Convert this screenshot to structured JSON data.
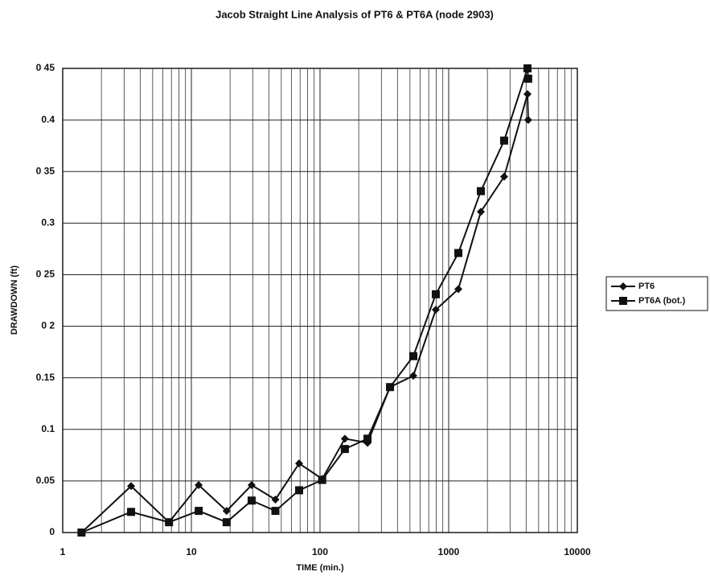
{
  "chart_data": {
    "type": "line",
    "title": "Jacob Straight Line Analysis of PT6 & PT6A (node 2903)",
    "xlabel": "TIME (min.)",
    "ylabel": "DRAWDOWN (ft)",
    "xscale": "log",
    "xlim": [
      1,
      10000
    ],
    "xticks": [
      1,
      10,
      100,
      1000,
      10000
    ],
    "ylim": [
      0,
      0.45
    ],
    "yticks": [
      0,
      0.05,
      0.1,
      {
        "value": 0.15,
        "label": "0.15"
      },
      {
        "value": 0.2,
        "label": "0 2"
      },
      {
        "value": 0.25,
        "label": "0 25"
      },
      0.3,
      {
        "value": 0.35,
        "label": "0 35"
      },
      0.4,
      {
        "value": 0.45,
        "label": "0 45"
      }
    ],
    "grid": true,
    "legend": "right",
    "x": [
      1.4,
      3.4,
      6.7,
      11.4,
      18.8,
      29.4,
      45,
      68.8,
      104,
      156,
      234,
      350,
      531,
      794,
      1189,
      1778,
      2698,
      4099,
      4150
    ],
    "series": [
      {
        "name": "PT6",
        "color": "#111111",
        "marker": "diamond",
        "values": [
          0,
          0.045,
          0.01,
          0.046,
          0.021,
          0.046,
          0.032,
          0.067,
          0.052,
          0.091,
          0.087,
          0.141,
          0.152,
          0.216,
          0.236,
          0.311,
          0.345,
          0.425,
          0.4
        ]
      },
      {
        "name": "PT6A (bot.)",
        "color": "#111111",
        "marker": "square",
        "values": [
          0,
          0.02,
          0.01,
          0.021,
          0.01,
          0.031,
          0.021,
          0.041,
          0.051,
          0.081,
          0.091,
          0.141,
          0.171,
          0.231,
          0.271,
          0.331,
          0.38,
          0.45,
          0.44
        ]
      }
    ]
  }
}
